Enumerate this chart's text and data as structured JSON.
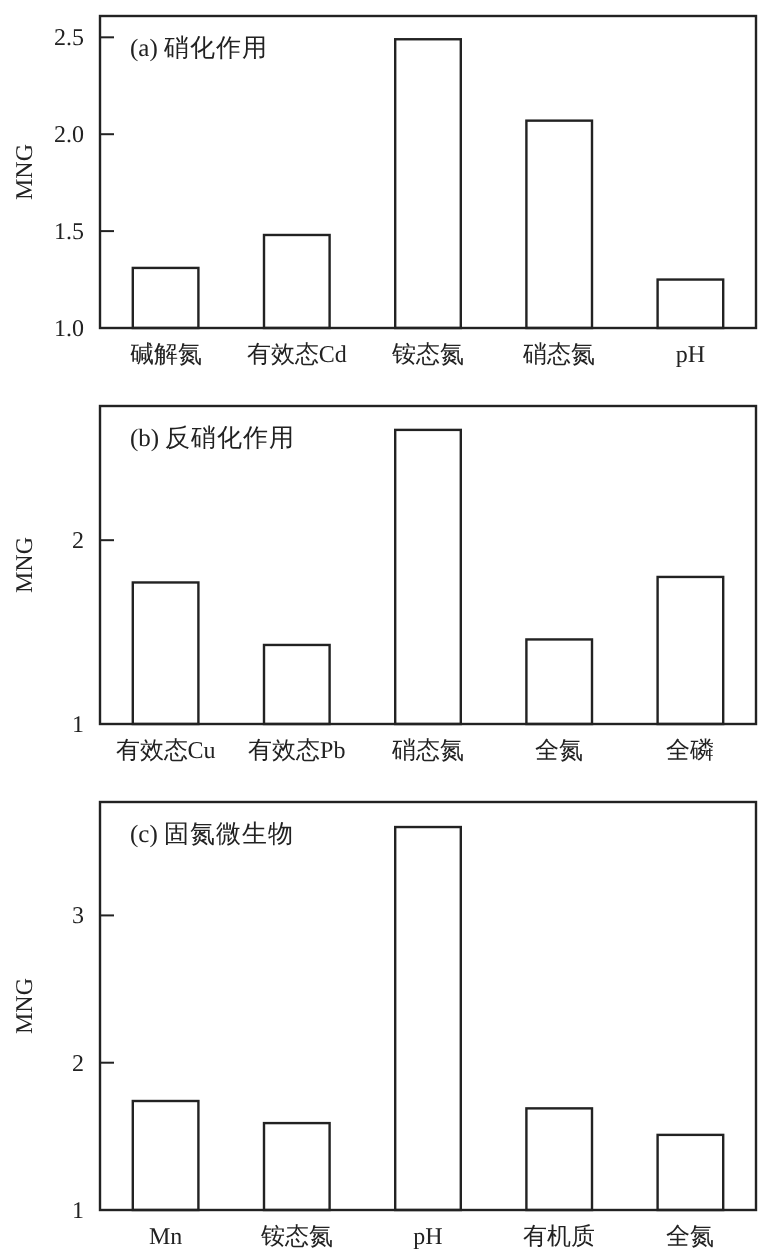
{
  "chart_data": [
    {
      "type": "bar",
      "title": "(a) 硝化作用",
      "ylabel": "MNG",
      "categories": [
        "碱解氮",
        "有效态Cd",
        "铵态氮",
        "硝态氮",
        "pH"
      ],
      "values": [
        1.31,
        1.48,
        2.49,
        2.07,
        1.25
      ],
      "color": "#ffffff",
      "ylim": [
        1.0,
        2.61
      ],
      "yticks": [
        {
          "value": 1.0,
          "label": "1.0"
        },
        1.5,
        {
          "value": 2.0,
          "label": "2.0"
        },
        2.5
      ]
    },
    {
      "type": "bar",
      "title": "(b) 反硝化作用",
      "ylabel": "MNG",
      "categories": [
        "有效态Cu",
        "有效态Pb",
        "硝态氮",
        "全氮",
        "全磷"
      ],
      "values": [
        1.77,
        1.43,
        2.6,
        1.46,
        1.8
      ],
      "color": "#ffffff",
      "ylim": [
        1,
        2.73
      ],
      "yticks": [
        1,
        2
      ]
    },
    {
      "type": "bar",
      "title": "(c) 固氮微生物",
      "ylabel": "MNG",
      "categories": [
        "Mn",
        "铵态氮",
        "pH",
        "有机质",
        "全氮"
      ],
      "values": [
        1.74,
        1.59,
        3.6,
        1.69,
        1.51
      ],
      "color": "#ffffff",
      "ylim": [
        1,
        3.77
      ],
      "yticks": [
        1,
        2,
        3
      ]
    }
  ]
}
